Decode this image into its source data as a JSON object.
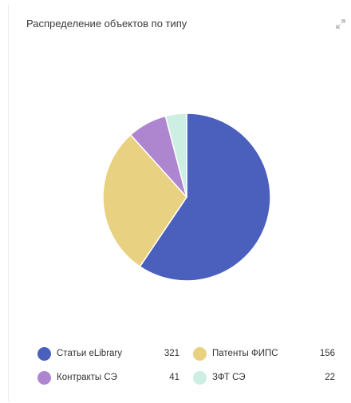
{
  "widget": {
    "title": "Распределение объектов по типу",
    "expand_icon": "expand-arrows-icon"
  },
  "colors": {
    "slice_border": "#ffffff",
    "text": "#333333",
    "icon": "#b5b5b5"
  },
  "chart_data": {
    "type": "pie",
    "title": "Распределение объектов по типу",
    "legend_position": "bottom",
    "slices": [
      {
        "label": "Статьи eLibrary",
        "value": 321,
        "display": "321",
        "color": "#4b5fbd"
      },
      {
        "label": "Патенты ФИПС",
        "value": 156,
        "display": "156",
        "color": "#e8d281"
      },
      {
        "label": "Контракты СЭ",
        "value": 41,
        "display": "41",
        "color": "#ae85cf"
      },
      {
        "label": "ЗФТ СЭ",
        "value": 22,
        "display": "22",
        "color": "#cdeee2"
      }
    ]
  }
}
